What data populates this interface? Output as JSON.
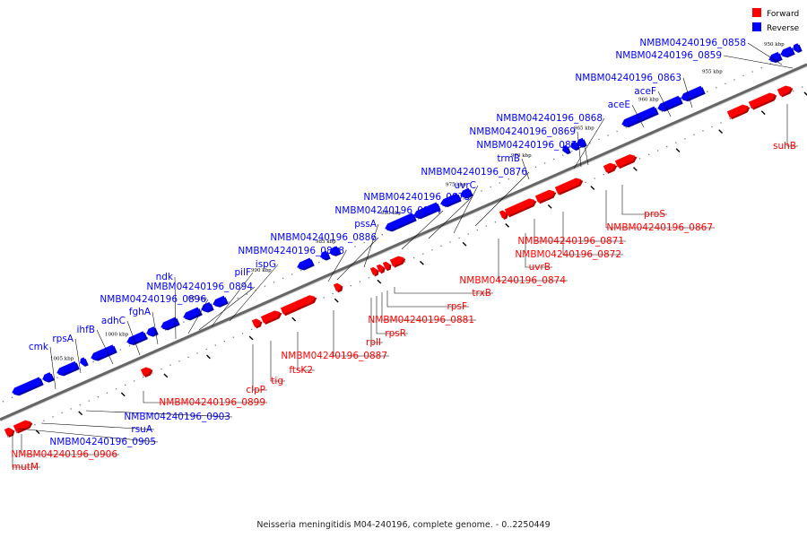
{
  "caption": "Neisseria meningitidis M04-240196, complete genome. - 0..2250449",
  "colors": {
    "forward": "#ff0000",
    "forward_dark": "#b00000",
    "reverse": "#0000ff",
    "reverse_dark": "#0000a8",
    "axis": "#666666",
    "leader": "#000000"
  },
  "legend": [
    {
      "key": "forward",
      "label": "Forward",
      "color": "#ff0000"
    },
    {
      "key": "reverse",
      "label": "Reverse",
      "color": "#0000ff"
    }
  ],
  "scale": {
    "unit": "kbp",
    "kbp_labels": [
      "1005 kbp",
      "1000 kbp",
      "995 kbp",
      "990 kbp",
      "985 kbp",
      "980 kbp",
      "975 kbp",
      "970 kbp",
      "965 kbp",
      "960 kbp",
      "955 kbp",
      "950 kbp"
    ]
  },
  "reverse_genes": [
    "NMBM04240196_0858",
    "NMBM04240196_0859",
    "NMBM04240196_0863",
    "aceF",
    "aceE",
    "NMBM04240196_0868",
    "NMBM04240196_0869",
    "NMBM04240196_0870",
    "trmB",
    "NMBM04240196_0876",
    "uvrC",
    "NMBM04240196_0878",
    "NMBM04240196_0884",
    "pssA",
    "NMBM04240196_0886",
    "NMBM04240196_0888",
    "ispG",
    "pilF",
    "NMBM04240196_0894",
    "ndk",
    "NMBM04240196_0896",
    "fghA",
    "adhC",
    "ihfB",
    "rpsA",
    "cmk",
    "NMBM04240196_0903",
    "rsuA",
    "NMBM04240196_0905"
  ],
  "forward_genes": [
    "suhB",
    "proS",
    "NMBM04240196_0867",
    "NMBM04240196_0871",
    "NMBM04240196_0872",
    "uvrB",
    "NMBM04240196_0874",
    "trxB",
    "rpsF",
    "NMBM04240196_0881",
    "rpsR",
    "rplI",
    "NMBM04240196_0887",
    "ftsK2",
    "tig",
    "clpP",
    "NMBM04240196_0899",
    "NMBM04240196_0906",
    "mutM"
  ]
}
